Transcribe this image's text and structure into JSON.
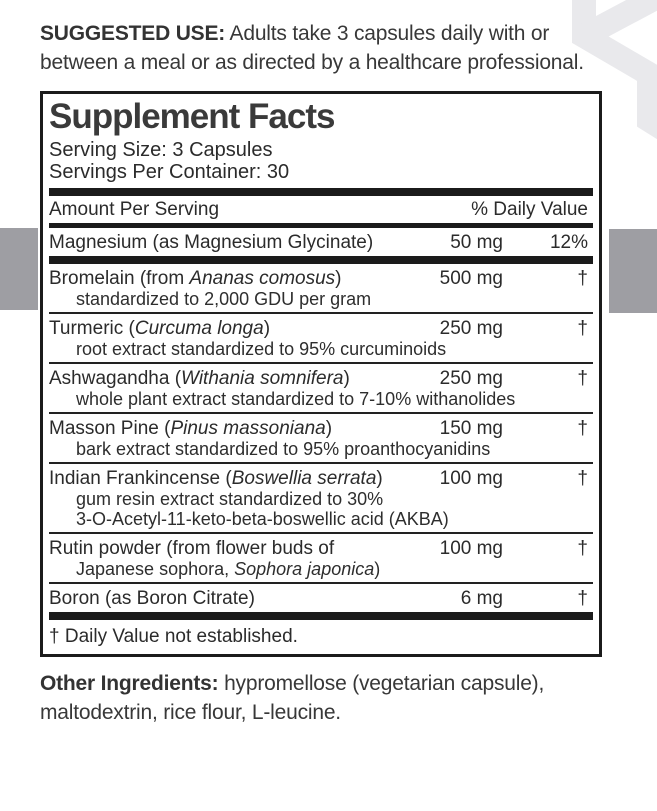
{
  "suggested_use": {
    "label": "SUGGESTED USE:",
    "text": "Adults take 3 capsules daily with or between a meal or as directed by a healthcare professional."
  },
  "panel": {
    "title": "Supplement Facts",
    "serving_size": "Serving Size: 3 Capsules",
    "servings_per_container": "Servings Per Container: 30",
    "col_amount": "Amount Per Serving",
    "col_dv": "% Daily Value",
    "rows": [
      {
        "name": [
          {
            "t": "Magnesium (as Magnesium Glycinate)",
            "i": false
          }
        ],
        "amount": "50 mg",
        "dv": "12%",
        "subs": [],
        "divider_after": "thick"
      },
      {
        "name": [
          {
            "t": "Bromelain (from ",
            "i": false
          },
          {
            "t": "Ananas comosus",
            "i": true
          },
          {
            "t": ")",
            "i": false
          }
        ],
        "amount": "500 mg",
        "dv": "†",
        "subs": [
          [
            {
              "t": "standardized to 2,000 GDU per gram",
              "i": false
            }
          ]
        ],
        "divider_after": "thin"
      },
      {
        "name": [
          {
            "t": "Turmeric (",
            "i": false
          },
          {
            "t": "Curcuma longa",
            "i": true
          },
          {
            "t": ")",
            "i": false
          }
        ],
        "amount": "250 mg",
        "dv": "†",
        "subs": [
          [
            {
              "t": "root extract standardized to 95% curcuminoids",
              "i": false
            }
          ]
        ],
        "divider_after": "thin"
      },
      {
        "name": [
          {
            "t": "Ashwagandha (",
            "i": false
          },
          {
            "t": "Withania somnifera",
            "i": true
          },
          {
            "t": ")",
            "i": false
          }
        ],
        "amount": "250 mg",
        "dv": "†",
        "subs": [
          [
            {
              "t": "whole plant extract standardized to 7-10% withanolides",
              "i": false
            }
          ]
        ],
        "divider_after": "thin"
      },
      {
        "name": [
          {
            "t": "Masson Pine (",
            "i": false
          },
          {
            "t": "Pinus massoniana",
            "i": true
          },
          {
            "t": ")",
            "i": false
          }
        ],
        "amount": "150 mg",
        "dv": "†",
        "subs": [
          [
            {
              "t": "bark extract standardized to 95% proanthocyanidins",
              "i": false
            }
          ]
        ],
        "divider_after": "thin"
      },
      {
        "name": [
          {
            "t": "Indian Frankincense (",
            "i": false
          },
          {
            "t": "Boswellia serrata",
            "i": true
          },
          {
            "t": ")",
            "i": false
          }
        ],
        "amount": "100 mg",
        "dv": "†",
        "subs": [
          [
            {
              "t": "gum resin extract standardized to 30%",
              "i": false
            }
          ],
          [
            {
              "t": "3-O-Acetyl-11-keto-beta-boswellic acid (AKBA)",
              "i": false
            }
          ]
        ],
        "divider_after": "thin"
      },
      {
        "name": [
          {
            "t": "Rutin powder (from flower buds of",
            "i": false
          }
        ],
        "amount": "100 mg",
        "dv": "†",
        "subs": [
          [
            {
              "t": "Japanese sophora, ",
              "i": false
            },
            {
              "t": "Sophora japonica",
              "i": true
            },
            {
              "t": ")",
              "i": false
            }
          ]
        ],
        "divider_after": "thin"
      },
      {
        "name": [
          {
            "t": "Boron (as Boron Citrate)",
            "i": false
          }
        ],
        "amount": "6 mg",
        "dv": "†",
        "subs": [],
        "divider_after": "thick"
      }
    ],
    "footnote": "† Daily Value not established."
  },
  "other_ingredients": {
    "label": "Other Ingredients:",
    "text": "hypromellose (vegetarian capsule), maltodextrin, rice flour, L-leucine."
  },
  "colors": {
    "accent_gray_block": "#9e9ea3",
    "molecule_decoration": "#e9e9ec",
    "ink": "#262626"
  },
  "icons": {
    "molecule_decoration": "hexagon-molecule-icon"
  }
}
